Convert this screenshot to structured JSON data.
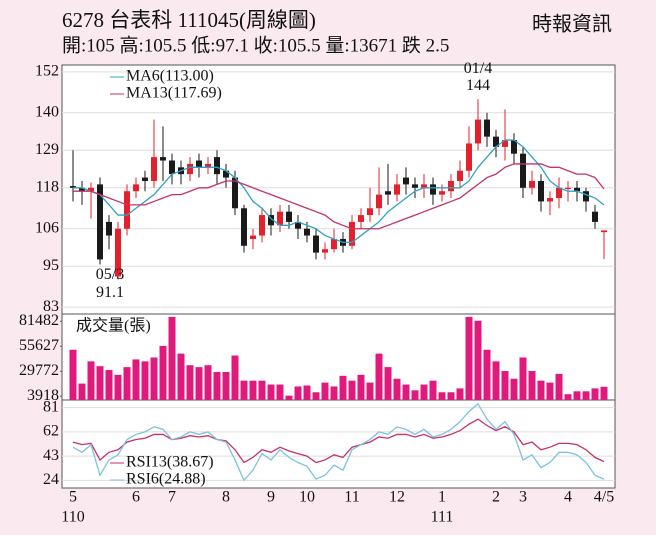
{
  "chart_data": {
    "type": "candlestick",
    "title": "6278 台表科 111045(周線圖)",
    "subtitle": "開:105 高:105.5 低:97.1 收:105.5 量:13671 跌 2.5",
    "source": "時報資訊",
    "categories": [
      "5",
      null,
      null,
      null,
      null,
      null,
      null,
      "6",
      null,
      null,
      null,
      "7",
      null,
      null,
      null,
      null,
      null,
      "8",
      null,
      null,
      null,
      null,
      "9",
      null,
      null,
      null,
      "10",
      null,
      null,
      null,
      null,
      "11",
      null,
      null,
      null,
      null,
      "12",
      null,
      null,
      null,
      null,
      "1",
      null,
      null,
      null,
      null,
      null,
      "2",
      null,
      null,
      "3",
      null,
      null,
      null,
      null,
      "4",
      null,
      null,
      null,
      "4/5"
    ],
    "subcategories": [
      "110",
      null,
      null,
      null,
      null,
      null,
      null,
      null,
      null,
      null,
      null,
      null,
      null,
      null,
      null,
      null,
      null,
      null,
      null,
      null,
      null,
      null,
      null,
      null,
      null,
      null,
      null,
      null,
      null,
      null,
      null,
      null,
      null,
      null,
      null,
      null,
      null,
      null,
      null,
      null,
      null,
      "111",
      null,
      null,
      null,
      null,
      null,
      null,
      null,
      null,
      null,
      null,
      null,
      null,
      null,
      null,
      null,
      null,
      null,
      null
    ],
    "open": [
      118.5,
      118,
      117,
      119,
      108,
      92,
      106,
      117,
      121,
      120,
      127,
      126,
      124,
      122,
      126,
      124,
      127,
      123,
      121,
      112,
      103,
      104,
      110,
      107,
      111,
      108,
      106,
      104,
      99,
      100,
      103,
      101,
      108,
      110,
      112,
      117,
      116,
      121,
      119,
      118,
      119,
      116,
      117,
      120,
      123,
      131,
      138,
      133,
      130,
      132,
      128,
      118,
      120,
      114,
      115,
      118,
      118,
      117,
      111,
      105
    ],
    "high": [
      129,
      120,
      119.5,
      121,
      110,
      108,
      119,
      121,
      123,
      138,
      136,
      128,
      126,
      127,
      128,
      127,
      129,
      125,
      123,
      113,
      106,
      112,
      112,
      113,
      113,
      110,
      108,
      106,
      102,
      106,
      105,
      110,
      112,
      118,
      124,
      125,
      122,
      124,
      121,
      122,
      121,
      119,
      122,
      126,
      136,
      144,
      140,
      135,
      141,
      134,
      130,
      123,
      122,
      117,
      121,
      120,
      120,
      118,
      113,
      105.5
    ],
    "low": [
      114,
      113,
      109,
      95.5,
      100,
      91.1,
      104,
      115,
      117,
      118,
      120,
      119,
      119,
      120,
      121,
      122,
      119,
      118,
      110,
      99,
      100,
      102,
      104,
      105,
      106,
      103,
      102,
      97,
      97,
      99,
      99,
      100,
      106,
      108,
      110,
      113,
      114,
      116,
      115,
      115,
      113,
      114,
      115,
      118,
      121,
      129,
      130,
      127,
      126,
      125,
      115,
      116,
      111,
      110,
      112,
      114,
      114,
      111,
      106,
      97.1
    ],
    "close": [
      118,
      117,
      118,
      97,
      104,
      106,
      117,
      119,
      120,
      127,
      126,
      122,
      122,
      125,
      124,
      125,
      122,
      121,
      112,
      101,
      104,
      110,
      107,
      111,
      108,
      106,
      104,
      99,
      100,
      103,
      101,
      108,
      110,
      112,
      116,
      116,
      119,
      119,
      118,
      119,
      116,
      117,
      120,
      123,
      131,
      138,
      133,
      130,
      132,
      128,
      118,
      120,
      114,
      115,
      118,
      118,
      117,
      114,
      108,
      105.5
    ],
    "up_color": "#e3212d",
    "down_color": "#1a1a1a",
    "ylim": [
      81,
      154
    ],
    "yticks": [
      83,
      95,
      106,
      118,
      129,
      140,
      152
    ],
    "grid": true,
    "series": [
      {
        "name": "MA6(113.00)",
        "color": "#2fa3c0",
        "values": [
          118,
          118,
          117,
          116,
          113,
          110,
          110,
          112,
          114,
          116,
          119,
          122,
          123,
          124,
          124,
          124,
          124,
          123,
          121,
          118,
          114,
          112,
          109,
          107,
          107,
          108,
          107,
          106,
          104,
          103,
          102,
          102,
          104,
          106,
          108,
          111,
          113,
          115,
          117,
          118,
          118,
          118,
          118,
          118,
          120,
          124,
          127,
          130,
          132,
          132,
          130,
          127,
          124,
          120,
          118,
          117,
          117,
          116,
          115,
          113
        ]
      },
      {
        "name": "MA13(117.69)",
        "color": "#c4316b",
        "values": [
          117,
          117,
          117,
          116,
          115,
          114,
          113,
          113,
          113,
          114,
          115,
          116,
          116,
          117,
          118,
          118,
          119,
          120,
          120,
          119,
          118,
          117,
          116,
          115,
          114,
          113,
          112,
          111,
          110,
          108,
          107,
          106,
          106,
          106,
          106,
          107,
          108,
          109,
          110,
          111,
          112,
          113,
          114,
          115,
          117,
          119,
          121,
          122,
          124,
          125,
          125,
          125,
          125,
          124,
          124,
          123,
          122,
          122,
          121,
          117.69
        ]
      }
    ],
    "annotations": [
      {
        "date": "05/3",
        "value": 91.1
      },
      {
        "date": "01/4",
        "value": 144
      }
    ],
    "volume": {
      "label": "成交量(張)",
      "color": "#e0197d",
      "ylim": [
        0,
        89000
      ],
      "yticks": [
        3918,
        29772,
        55627,
        81482
      ],
      "values": [
        52000,
        17000,
        40000,
        35000,
        31000,
        26000,
        34000,
        42000,
        40000,
        44000,
        56000,
        86000,
        48000,
        36000,
        34000,
        36000,
        29000,
        29000,
        46000,
        20000,
        20000,
        20000,
        16000,
        16000,
        4500,
        14000,
        15000,
        8000,
        18000,
        14000,
        25000,
        20000,
        26000,
        18000,
        48000,
        34000,
        22000,
        16000,
        10000,
        16000,
        20000,
        8000,
        8000,
        12000,
        86000,
        82000,
        52000,
        40000,
        30000,
        22000,
        44000,
        30000,
        20000,
        18000,
        27000,
        6000,
        9000,
        9000,
        12000,
        13671
      ]
    },
    "rsi": {
      "ylim": [
        18,
        87
      ],
      "yticks": [
        24,
        43,
        62,
        81
      ],
      "series": [
        {
          "name": "RSI13(38.67)",
          "color": "#c4316b",
          "values": [
            54,
            52,
            53,
            40,
            46,
            48,
            54,
            56,
            57,
            60,
            60,
            56,
            57,
            59,
            58,
            59,
            56,
            55,
            48,
            38,
            42,
            48,
            46,
            50,
            47,
            45,
            43,
            38,
            40,
            44,
            42,
            50,
            52,
            54,
            58,
            57,
            60,
            60,
            58,
            60,
            57,
            58,
            60,
            63,
            68,
            72,
            67,
            63,
            66,
            62,
            52,
            54,
            48,
            50,
            53,
            53,
            52,
            48,
            42,
            38.67
          ]
        },
        {
          "name": "RSI6(24.88)",
          "color": "#7cc3df",
          "values": [
            50,
            46,
            52,
            28,
            40,
            44,
            56,
            60,
            62,
            66,
            64,
            56,
            58,
            62,
            60,
            62,
            56,
            54,
            40,
            24,
            32,
            45,
            40,
            48,
            42,
            38,
            35,
            25,
            28,
            36,
            32,
            48,
            52,
            56,
            62,
            60,
            66,
            64,
            60,
            64,
            58,
            60,
            64,
            70,
            78,
            84,
            72,
            64,
            70,
            60,
            40,
            44,
            34,
            38,
            46,
            46,
            44,
            38,
            28,
            24.88
          ]
        }
      ]
    }
  }
}
